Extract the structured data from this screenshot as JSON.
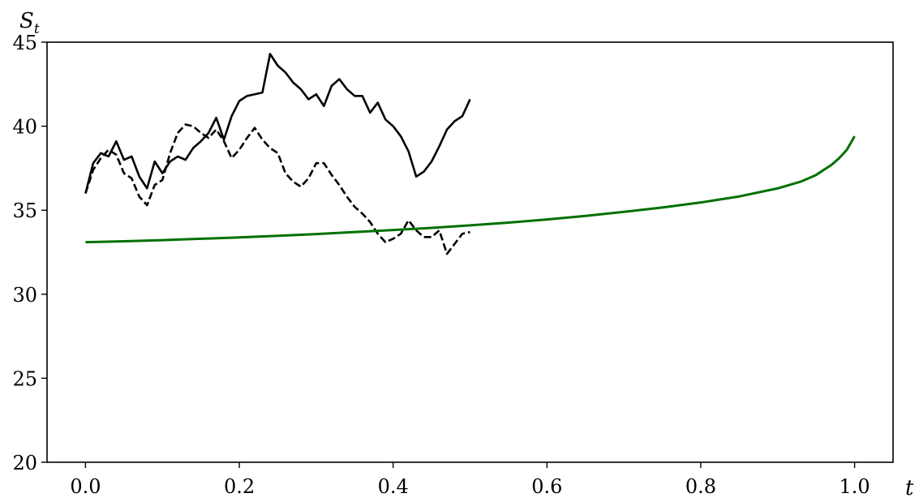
{
  "chart_data": {
    "type": "line",
    "xlabel": "t",
    "ylabel": "S",
    "ylabel_subscript": "t",
    "xlim": [
      -0.05,
      1.05
    ],
    "ylim": [
      20,
      45
    ],
    "xticks": [
      0.0,
      0.2,
      0.4,
      0.6,
      0.8,
      1.0
    ],
    "xtick_labels": [
      "0.0",
      "0.2",
      "0.4",
      "0.6",
      "0.8",
      "1.0"
    ],
    "yticks": [
      20,
      25,
      30,
      35,
      40,
      45
    ],
    "ytick_labels": [
      "20",
      "25",
      "30",
      "35",
      "40",
      "45"
    ],
    "grid": false,
    "series": [
      {
        "style": "solid",
        "color": "#000000",
        "x": [
          0.0,
          0.01,
          0.02,
          0.03,
          0.04,
          0.05,
          0.06,
          0.07,
          0.08,
          0.09,
          0.1,
          0.11,
          0.12,
          0.13,
          0.14,
          0.15,
          0.16,
          0.17,
          0.18,
          0.19,
          0.2,
          0.21,
          0.22,
          0.23,
          0.24,
          0.25,
          0.26,
          0.27,
          0.28,
          0.29,
          0.3,
          0.31,
          0.32,
          0.33,
          0.34,
          0.35,
          0.36,
          0.37,
          0.38,
          0.39,
          0.4,
          0.41,
          0.42,
          0.43,
          0.44,
          0.45,
          0.46,
          0.47,
          0.48,
          0.49,
          0.5
        ],
        "y": [
          36.0,
          37.8,
          38.4,
          38.2,
          39.1,
          38.0,
          38.2,
          37.0,
          36.3,
          37.9,
          37.2,
          37.9,
          38.2,
          38.0,
          38.7,
          39.1,
          39.6,
          40.5,
          39.2,
          40.6,
          41.5,
          41.8,
          41.9,
          42.0,
          44.3,
          43.6,
          43.2,
          42.6,
          42.2,
          41.6,
          41.9,
          41.2,
          42.4,
          42.8,
          42.2,
          41.8,
          41.8,
          40.8,
          41.4,
          40.4,
          40.0,
          39.4,
          38.5,
          37.0,
          37.3,
          37.9,
          38.8,
          39.8,
          40.3,
          40.6,
          41.6
        ]
      },
      {
        "style": "dashed",
        "color": "#000000",
        "x": [
          0.0,
          0.01,
          0.02,
          0.03,
          0.04,
          0.05,
          0.06,
          0.07,
          0.08,
          0.09,
          0.1,
          0.11,
          0.12,
          0.13,
          0.14,
          0.15,
          0.16,
          0.17,
          0.18,
          0.19,
          0.2,
          0.21,
          0.22,
          0.23,
          0.24,
          0.25,
          0.26,
          0.27,
          0.28,
          0.29,
          0.3,
          0.31,
          0.32,
          0.33,
          0.34,
          0.35,
          0.36,
          0.37,
          0.38,
          0.39,
          0.4,
          0.41,
          0.42,
          0.43,
          0.44,
          0.45,
          0.46,
          0.47,
          0.48,
          0.49,
          0.5
        ],
        "y": [
          36.0,
          37.4,
          38.1,
          38.6,
          38.3,
          37.2,
          36.9,
          35.8,
          35.3,
          36.5,
          36.8,
          38.4,
          39.6,
          40.1,
          40.0,
          39.6,
          39.3,
          39.8,
          39.1,
          38.1,
          38.6,
          39.3,
          39.9,
          39.2,
          38.7,
          38.4,
          37.2,
          36.7,
          36.4,
          36.9,
          37.8,
          37.8,
          37.1,
          36.5,
          35.8,
          35.2,
          34.8,
          34.3,
          33.6,
          33.1,
          33.3,
          33.6,
          34.4,
          33.8,
          33.4,
          33.4,
          33.8,
          32.4,
          33.0,
          33.6,
          33.7
        ]
      },
      {
        "style": "solid",
        "color": "#007000",
        "x": [
          0.0,
          0.05,
          0.1,
          0.15,
          0.2,
          0.25,
          0.3,
          0.35,
          0.4,
          0.45,
          0.5,
          0.55,
          0.6,
          0.65,
          0.7,
          0.75,
          0.8,
          0.85,
          0.9,
          0.93,
          0.95,
          0.97,
          0.98,
          0.99,
          1.0
        ],
        "y": [
          33.1,
          33.15,
          33.22,
          33.3,
          33.38,
          33.48,
          33.58,
          33.7,
          33.82,
          33.95,
          34.1,
          34.26,
          34.45,
          34.66,
          34.9,
          35.16,
          35.46,
          35.82,
          36.3,
          36.7,
          37.1,
          37.7,
          38.1,
          38.6,
          39.4
        ]
      }
    ]
  }
}
